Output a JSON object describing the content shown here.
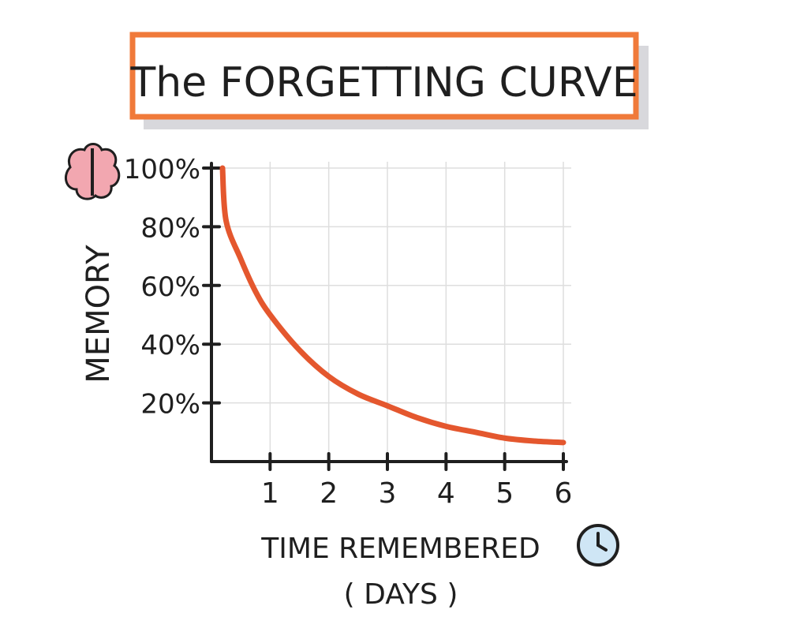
{
  "chart_data": {
    "type": "line",
    "title": "The FORGETTING CURVE",
    "xlabel": "TIME REMEMBERED",
    "xlabel_unit": "( DAYS )",
    "ylabel": "MEMORY",
    "x_ticks": [
      "1",
      "2",
      "3",
      "4",
      "5",
      "6"
    ],
    "y_ticks": [
      "20%",
      "40%",
      "60%",
      "80%",
      "100%"
    ],
    "xlim": [
      0,
      6
    ],
    "ylim": [
      0,
      100
    ],
    "grid": true,
    "series": [
      {
        "x": [
          0,
          0.25,
          0.5,
          0.75,
          1,
          1.5,
          2,
          2.5,
          3,
          3.5,
          4,
          4.5,
          5,
          5.5,
          6
        ],
        "y": [
          100,
          82,
          69,
          58,
          50,
          38,
          29,
          23,
          19,
          15,
          12,
          10,
          8,
          7,
          6.5
        ]
      }
    ],
    "colors": {
      "curve": "#e4572e",
      "title_border": "#f07a3a",
      "title_shadow": "#d8d8dc",
      "grid": "#dedede",
      "axis": "#1f1f1f",
      "brain": "#f2a7b0",
      "clock": "#cfe6f5"
    },
    "icons": [
      "brain-icon",
      "clock-icon"
    ]
  }
}
